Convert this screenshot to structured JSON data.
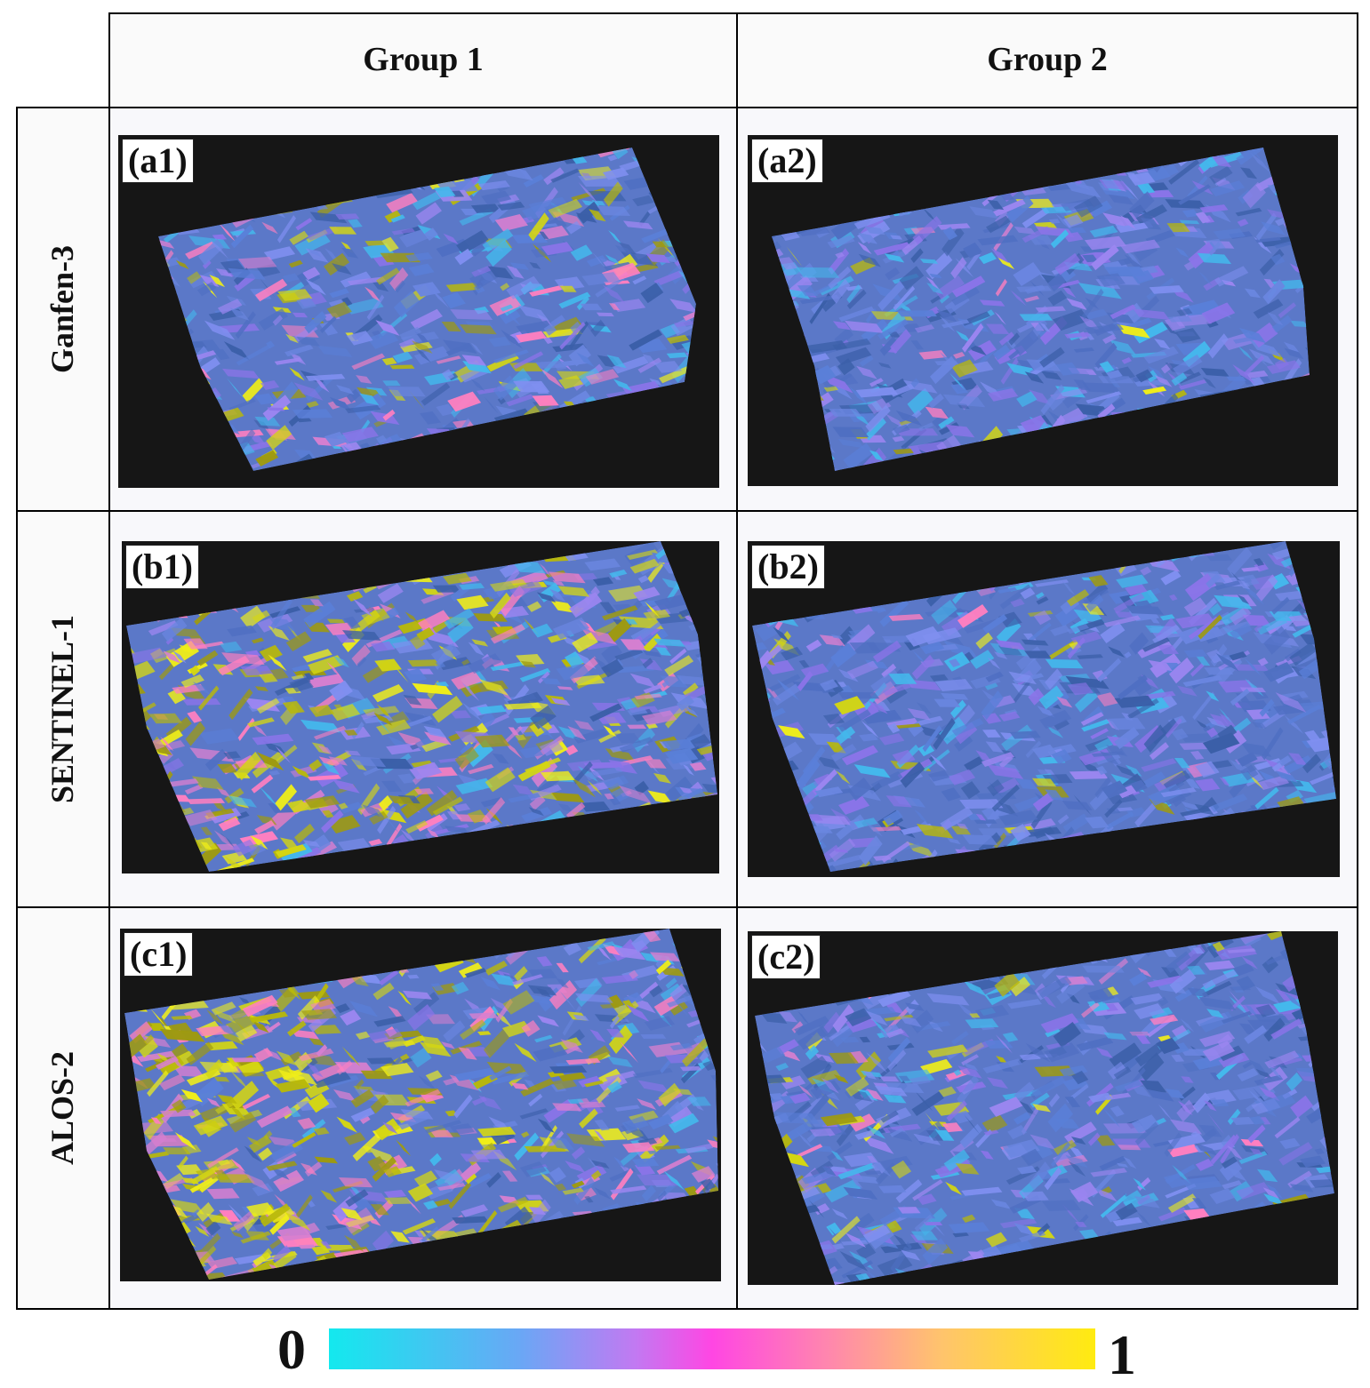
{
  "columns": [
    "Group 1",
    "Group 2"
  ],
  "rows": [
    "Ganfen-3",
    "SENTINEL-1",
    "ALOS-2"
  ],
  "panels": [
    "(a1)",
    "(a2)",
    "(b1)",
    "(b2)",
    "(c1)",
    "(c2)"
  ],
  "colorbar": {
    "min_label": "0",
    "max_label": "1",
    "colors": [
      "#13e9ee",
      "#6aa7f5",
      "#c279f2",
      "#ff46e3",
      "#ff86ae",
      "#ffc46c",
      "#ffeb10"
    ]
  }
}
